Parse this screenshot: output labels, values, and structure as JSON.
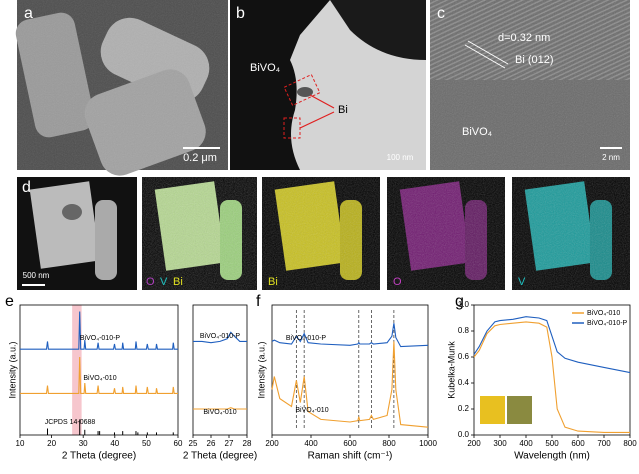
{
  "figure": {
    "a": {
      "letter": "a",
      "scale": "0.2 μm"
    },
    "b": {
      "letter": "b",
      "material": "BiVO₄",
      "phase": "Bi",
      "scale": "100 nm"
    },
    "c": {
      "letter": "c",
      "spacing": "d=0.32 nm",
      "plane": "Bi (012)",
      "material": "BiVO₄",
      "scale": "2 nm"
    },
    "d": {
      "letter": "d",
      "scale": "500 nm",
      "overlay": [
        "O",
        "V",
        "Bi"
      ],
      "maps": [
        "Bi",
        "O",
        "V"
      ]
    }
  },
  "chart_data": [
    {
      "type": "line",
      "panel": "e",
      "xlabel": "2 Theta (degree)",
      "ylabel": "Intensity (a.u.)",
      "xlim": [
        10,
        60
      ],
      "xticks": [
        10,
        20,
        30,
        40,
        50,
        60
      ],
      "ylim": [
        0,
        1
      ],
      "highlight": [
        26.5,
        29.5
      ],
      "series": [
        {
          "name": "BiVO₄-010-P",
          "color": "#1f5fbf",
          "x": [
            10,
            18.4,
            18.7,
            19.0,
            28.6,
            28.9,
            29.2,
            30.3,
            30.5,
            30.8,
            34.4,
            34.7,
            35.0,
            39.6,
            39.9,
            40.2,
            42.3,
            42.5,
            42.8,
            46.5,
            46.7,
            47.0,
            50.0,
            50.3,
            50.6,
            53.0,
            53.2,
            53.5,
            58.3,
            58.5,
            58.8,
            60
          ],
          "values": [
            0.66,
            0.66,
            0.72,
            0.66,
            0.66,
            0.95,
            0.66,
            0.66,
            0.73,
            0.66,
            0.66,
            0.71,
            0.66,
            0.66,
            0.7,
            0.66,
            0.66,
            0.71,
            0.66,
            0.66,
            0.72,
            0.66,
            0.66,
            0.7,
            0.66,
            0.66,
            0.7,
            0.66,
            0.66,
            0.71,
            0.66,
            0.66
          ]
        },
        {
          "name": "BiVO₄-010",
          "color": "#f0a030",
          "x": [
            10,
            18.4,
            18.7,
            19.0,
            28.6,
            28.9,
            29.2,
            30.3,
            30.5,
            30.8,
            34.4,
            34.7,
            35.0,
            39.6,
            39.9,
            40.2,
            42.3,
            42.5,
            42.8,
            46.5,
            46.7,
            47.0,
            50.0,
            50.3,
            50.6,
            53.0,
            53.2,
            53.5,
            58.3,
            58.5,
            58.8,
            60
          ],
          "values": [
            0.32,
            0.32,
            0.38,
            0.32,
            0.32,
            0.6,
            0.32,
            0.32,
            0.4,
            0.32,
            0.32,
            0.38,
            0.32,
            0.32,
            0.36,
            0.32,
            0.32,
            0.37,
            0.32,
            0.32,
            0.38,
            0.32,
            0.32,
            0.37,
            0.32,
            0.32,
            0.36,
            0.32,
            0.32,
            0.37,
            0.32,
            0.32
          ]
        },
        {
          "name": "JCPDS 14-0688",
          "color": "#000000",
          "style": "stick",
          "x": [
            18.7,
            28.9,
            30.5,
            34.7,
            35.2,
            39.9,
            42.5,
            46.7,
            47.3,
            50.3,
            53.2,
            58.5
          ],
          "values": [
            0.05,
            0.12,
            0.04,
            0.03,
            0.03,
            0.02,
            0.03,
            0.03,
            0.02,
            0.02,
            0.02,
            0.02
          ]
        }
      ]
    },
    {
      "type": "line",
      "xlabel": "2 Theta (degree)",
      "xlim": [
        25,
        28
      ],
      "xticks": [
        25,
        26,
        27,
        28
      ],
      "ylim": [
        0,
        1
      ],
      "series": [
        {
          "name": "BiVO₄-010-P",
          "color": "#1f5fbf",
          "x": [
            25,
            25.5,
            26,
            26.5,
            26.9,
            27.1,
            27.3,
            27.6,
            28
          ],
          "values": [
            0.72,
            0.72,
            0.71,
            0.72,
            0.74,
            0.79,
            0.76,
            0.72,
            0.72
          ]
        },
        {
          "name": "BiVO₄-010",
          "color": "#f0a030",
          "x": [
            25,
            25.5,
            26,
            26.5,
            26.9,
            27.1,
            27.3,
            27.6,
            28
          ],
          "values": [
            0.2,
            0.2,
            0.2,
            0.2,
            0.2,
            0.21,
            0.2,
            0.2,
            0.2
          ]
        }
      ]
    },
    {
      "type": "line",
      "panel": "f",
      "xlabel": "Raman shift (cm⁻¹)",
      "ylabel": "Intensity (a.u.)",
      "xlim": [
        200,
        1000
      ],
      "xticks": [
        200,
        400,
        600,
        800,
        1000
      ],
      "ylim": [
        0,
        1
      ],
      "reference_lines": [
        325,
        365,
        645,
        710,
        825
      ],
      "series": [
        {
          "name": "BiVO₄-010-P",
          "color": "#1f5fbf",
          "x": [
            200,
            212,
            240,
            300,
            325,
            345,
            365,
            385,
            450,
            600,
            640,
            645,
            650,
            700,
            710,
            720,
            790,
            815,
            825,
            835,
            860,
            1000
          ],
          "values": [
            0.72,
            0.73,
            0.71,
            0.7,
            0.76,
            0.72,
            0.78,
            0.71,
            0.7,
            0.69,
            0.7,
            0.71,
            0.7,
            0.7,
            0.71,
            0.7,
            0.71,
            0.76,
            0.86,
            0.75,
            0.68,
            0.69
          ]
        },
        {
          "name": "BiVO₄-010",
          "color": "#f0a030",
          "x": [
            200,
            212,
            240,
            300,
            325,
            345,
            365,
            385,
            450,
            600,
            640,
            645,
            650,
            700,
            710,
            720,
            790,
            815,
            825,
            835,
            860,
            1000
          ],
          "values": [
            0.35,
            0.45,
            0.28,
            0.22,
            0.42,
            0.25,
            0.45,
            0.18,
            0.12,
            0.1,
            0.11,
            0.14,
            0.11,
            0.12,
            0.15,
            0.12,
            0.15,
            0.35,
            0.72,
            0.35,
            0.08,
            0.06
          ]
        }
      ]
    },
    {
      "type": "line",
      "panel": "g",
      "xlabel": "Wavelength (nm)",
      "ylabel": "Kubelka-Munk",
      "legend": "upper-right",
      "xlim": [
        200,
        800
      ],
      "xticks": [
        200,
        300,
        400,
        500,
        600,
        700,
        800
      ],
      "ylim": [
        0,
        1
      ],
      "yticks": [
        {
          "value": 0,
          "label": "0.0"
        },
        0.2,
        0.4,
        0.6,
        0.8,
        {
          "value": 1,
          "label": "1.0"
        }
      ],
      "series": [
        {
          "name": "BiVO₄-010",
          "color": "#f0a030",
          "x": [
            200,
            220,
            250,
            280,
            300,
            350,
            400,
            450,
            480,
            500,
            520,
            550,
            600,
            700,
            800
          ],
          "values": [
            0.6,
            0.65,
            0.78,
            0.84,
            0.85,
            0.86,
            0.87,
            0.86,
            0.83,
            0.6,
            0.2,
            0.06,
            0.03,
            0.02,
            0.02
          ]
        },
        {
          "name": "BiVO₄-010-P",
          "color": "#1f5fbf",
          "x": [
            200,
            220,
            250,
            280,
            300,
            350,
            400,
            450,
            480,
            500,
            520,
            550,
            600,
            700,
            800
          ],
          "values": [
            0.62,
            0.68,
            0.8,
            0.87,
            0.88,
            0.89,
            0.91,
            0.9,
            0.88,
            0.76,
            0.64,
            0.59,
            0.56,
            0.52,
            0.48
          ]
        }
      ]
    }
  ]
}
